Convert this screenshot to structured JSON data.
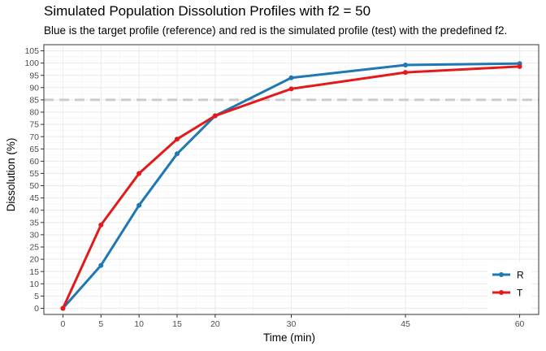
{
  "chart_data": {
    "type": "line",
    "title": "Simulated Population Dissolution Profiles with f2 = 50",
    "subtitle": "Blue is the target profile (reference) and red is the simulated profile (test) with the predefined f2.",
    "xlabel": "Time (min)",
    "ylabel": "Dissolution (%)",
    "x": [
      0,
      5,
      10,
      15,
      20,
      30,
      45,
      60
    ],
    "xticks": [
      0,
      5,
      10,
      15,
      20,
      30,
      45,
      60
    ],
    "yticks": [
      0,
      5,
      10,
      15,
      20,
      25,
      30,
      35,
      40,
      45,
      50,
      55,
      60,
      65,
      70,
      75,
      80,
      85,
      90,
      95,
      100,
      105
    ],
    "xlim": [
      -2.5,
      62.5
    ],
    "ylim": [
      -2.5,
      107.5
    ],
    "reference_line": {
      "y": 85,
      "style": "dashed",
      "color": "#cccccc"
    },
    "grid": true,
    "legend_position": "bottom-right",
    "series": [
      {
        "name": "R",
        "color": "#1f78b4",
        "values": [
          0,
          17.5,
          42,
          63,
          78.5,
          94,
          99.2,
          99.8
        ]
      },
      {
        "name": "T",
        "color": "#e31a1c",
        "values": [
          0,
          34,
          55,
          69,
          78.5,
          89.5,
          96.2,
          98.6
        ]
      }
    ]
  }
}
